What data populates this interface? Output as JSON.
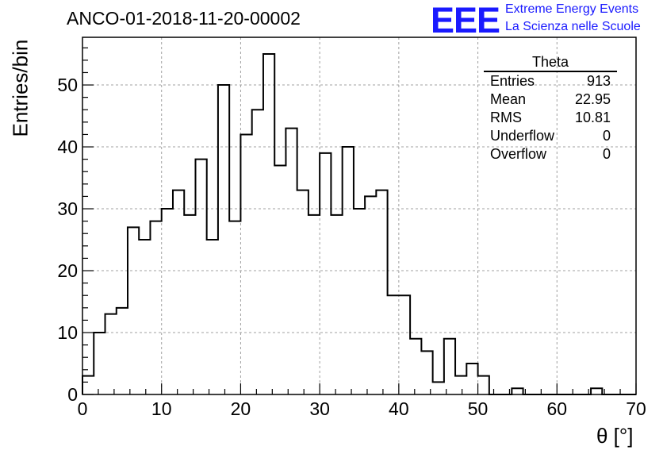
{
  "title": "ANCO-01-2018-11-20-00002",
  "logo": {
    "mark": "EEE",
    "line1": "Extreme Energy Events",
    "line2": "La Scienza nelle Scuole",
    "color": "#1a1aff"
  },
  "stats": {
    "title": "Theta",
    "rows": [
      {
        "label": "Entries",
        "value": "913"
      },
      {
        "label": "Mean",
        "value": "22.95"
      },
      {
        "label": "RMS",
        "value": "10.81"
      },
      {
        "label": "Underflow",
        "value": "0"
      },
      {
        "label": "Overflow",
        "value": "0"
      }
    ]
  },
  "chart_data": {
    "type": "bar",
    "title": "ANCO-01-2018-11-20-00002",
    "xlabel": "θ [°]",
    "ylabel": "Entries/bin",
    "xlim": [
      0,
      70
    ],
    "ylim": [
      0,
      57.7
    ],
    "bin_width": 1.43,
    "bin_starts": [
      0,
      1.43,
      2.86,
      4.29,
      5.71,
      7.14,
      8.57,
      10,
      11.43,
      12.86,
      14.29,
      15.71,
      17.14,
      18.57,
      20,
      21.43,
      22.86,
      24.29,
      25.71,
      27.14,
      28.57,
      30,
      31.43,
      32.86,
      34.29,
      35.71,
      37.14,
      38.57,
      40,
      41.43,
      42.86,
      44.29,
      45.71,
      47.14,
      48.57,
      50,
      51.43,
      52.86,
      54.29,
      55.71,
      57.14,
      58.57,
      60,
      61.43,
      62.86,
      64.29,
      65.71,
      67.14,
      68.57
    ],
    "values": [
      3,
      10,
      13,
      14,
      27,
      25,
      28,
      30,
      33,
      29,
      38,
      25,
      50,
      28,
      42,
      46,
      55,
      37,
      43,
      33,
      29,
      39,
      29,
      40,
      30,
      32,
      33,
      16,
      16,
      9,
      7,
      2,
      9,
      3,
      5,
      3,
      0,
      0,
      1,
      0,
      0,
      0,
      0,
      0,
      0,
      1,
      0,
      0,
      0
    ],
    "xticks": [
      0,
      10,
      20,
      30,
      40,
      50,
      60,
      70
    ],
    "yticks": [
      0,
      10,
      20,
      30,
      40,
      50
    ],
    "grid": true,
    "histogram_style": "step",
    "line_color": "#000000",
    "grid_color": "#a0a0a0"
  }
}
